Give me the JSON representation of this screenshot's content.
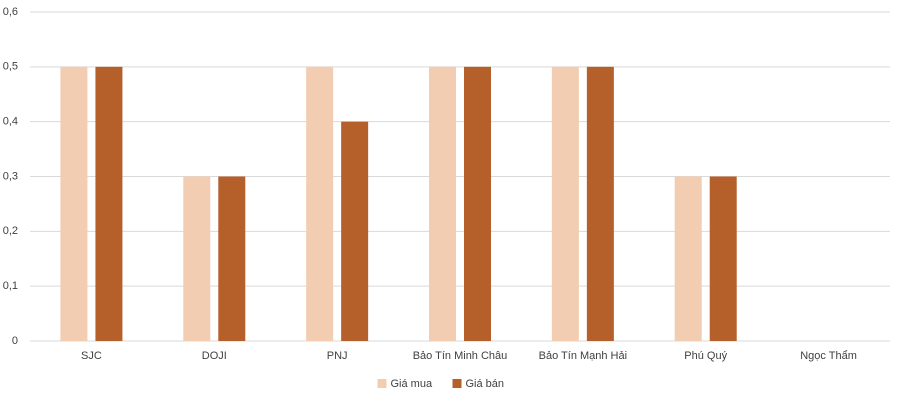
{
  "chart_data": {
    "type": "bar",
    "categories": [
      "SJC",
      "DOJI",
      "PNJ",
      "Bảo Tín Minh Châu",
      "Bảo Tín Mạnh Hải",
      "Phú Quý",
      "Ngọc Thẩm"
    ],
    "series": [
      {
        "name": "Giá mua",
        "color": "#f2cdb1",
        "values": [
          0.5,
          0.3,
          0.5,
          0.5,
          0.5,
          0.3,
          0
        ]
      },
      {
        "name": "Giá bán",
        "color": "#b5602b",
        "values": [
          0.5,
          0.3,
          0.4,
          0.5,
          0.5,
          0.3,
          0
        ]
      }
    ],
    "ylim": [
      0,
      0.6
    ],
    "yticks": [
      0,
      {
        "value": 0.1,
        "label": "0,1"
      },
      {
        "value": 0.2,
        "label": "0,2"
      },
      {
        "value": 0.3,
        "label": "0,3"
      },
      {
        "value": 0.4,
        "label": "0,4"
      },
      {
        "value": 0.5,
        "label": "0,5"
      },
      {
        "value": 0.6,
        "label": "0,6"
      }
    ],
    "grid": true,
    "legend": "bottom"
  }
}
